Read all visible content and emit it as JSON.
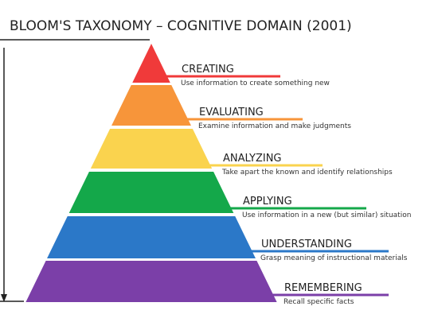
{
  "header": {
    "title": "BLOOM'S TAXONOMY – COGNITIVE DOMAIN (2001)"
  },
  "levels": [
    {
      "name": "CREATING",
      "description": "Use information to create something new",
      "color": "#f03a3a"
    },
    {
      "name": "EVALUATING",
      "description": "Examine information and make judgments",
      "color": "#f7953a"
    },
    {
      "name": "ANALYZING",
      "description": "Take apart the known and identify relationships",
      "color": "#fad34e"
    },
    {
      "name": "APPLYING",
      "description": "Use information in a new (but similar) situation",
      "color": "#14a84a"
    },
    {
      "name": "UNDERSTANDING",
      "description": "Grasp meaning of instructional materials",
      "color": "#2b78c8"
    },
    {
      "name": "REMEMBERING",
      "description": "Recall specific facts",
      "color": "#7b3fa8"
    }
  ]
}
